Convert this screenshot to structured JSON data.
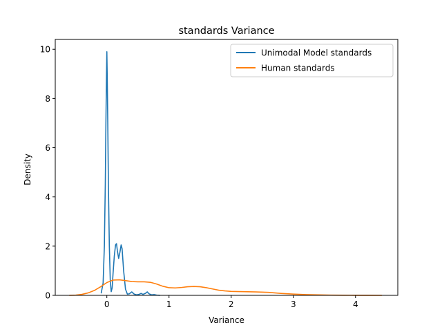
{
  "chart_data": {
    "type": "line",
    "title": "standards Variance",
    "xlabel": "Variance",
    "ylabel": "Density",
    "xlim": [
      -0.83,
      4.68
    ],
    "ylim": [
      0,
      10.4
    ],
    "x_ticks": [
      0,
      1,
      2,
      3,
      4
    ],
    "x_tick_labels": [
      "0",
      "1",
      "2",
      "3",
      "4"
    ],
    "y_ticks": [
      0,
      2,
      4,
      6,
      8,
      10
    ],
    "y_tick_labels": [
      "0",
      "2",
      "4",
      "6",
      "8",
      "10"
    ],
    "grid": false,
    "legend_position": "top-right",
    "series": [
      {
        "name": "Unimodal Model standards",
        "color": "#1f77b4",
        "points": [
          [
            -0.09,
            0.1
          ],
          [
            -0.06,
            0.5
          ],
          [
            -0.04,
            2.0
          ],
          [
            -0.025,
            4.5
          ],
          [
            -0.015,
            7.0
          ],
          [
            -0.006,
            8.9
          ],
          [
            0.0,
            9.9
          ],
          [
            0.006,
            8.9
          ],
          [
            0.015,
            7.0
          ],
          [
            0.025,
            4.5
          ],
          [
            0.04,
            2.0
          ],
          [
            0.055,
            0.6
          ],
          [
            0.07,
            0.15
          ],
          [
            0.085,
            0.3
          ],
          [
            0.1,
            0.9
          ],
          [
            0.12,
            1.6
          ],
          [
            0.14,
            2.05
          ],
          [
            0.155,
            2.1
          ],
          [
            0.17,
            1.8
          ],
          [
            0.19,
            1.5
          ],
          [
            0.21,
            1.75
          ],
          [
            0.23,
            2.05
          ],
          [
            0.245,
            1.9
          ],
          [
            0.27,
            1.0
          ],
          [
            0.3,
            0.25
          ],
          [
            0.33,
            0.05
          ],
          [
            0.36,
            0.06
          ],
          [
            0.4,
            0.14
          ],
          [
            0.44,
            0.05
          ],
          [
            0.48,
            0.02
          ],
          [
            0.52,
            0.04
          ],
          [
            0.55,
            0.08
          ],
          [
            0.58,
            0.04
          ],
          [
            0.62,
            0.08
          ],
          [
            0.65,
            0.14
          ],
          [
            0.68,
            0.06
          ],
          [
            0.72,
            0.02
          ],
          [
            0.76,
            0.03
          ],
          [
            0.8,
            0.01
          ],
          [
            0.85,
            0.0
          ]
        ]
      },
      {
        "name": "Human standards",
        "color": "#ff7f0e",
        "points": [
          [
            -0.6,
            0.0
          ],
          [
            -0.5,
            0.01
          ],
          [
            -0.4,
            0.04
          ],
          [
            -0.3,
            0.1
          ],
          [
            -0.2,
            0.2
          ],
          [
            -0.1,
            0.35
          ],
          [
            0.0,
            0.52
          ],
          [
            0.1,
            0.62
          ],
          [
            0.2,
            0.63
          ],
          [
            0.3,
            0.6
          ],
          [
            0.4,
            0.56
          ],
          [
            0.5,
            0.55
          ],
          [
            0.6,
            0.55
          ],
          [
            0.7,
            0.53
          ],
          [
            0.8,
            0.46
          ],
          [
            0.9,
            0.37
          ],
          [
            1.0,
            0.31
          ],
          [
            1.1,
            0.3
          ],
          [
            1.2,
            0.32
          ],
          [
            1.3,
            0.35
          ],
          [
            1.4,
            0.36
          ],
          [
            1.5,
            0.35
          ],
          [
            1.6,
            0.31
          ],
          [
            1.7,
            0.26
          ],
          [
            1.8,
            0.21
          ],
          [
            1.9,
            0.18
          ],
          [
            2.0,
            0.16
          ],
          [
            2.2,
            0.15
          ],
          [
            2.4,
            0.14
          ],
          [
            2.6,
            0.12
          ],
          [
            2.8,
            0.08
          ],
          [
            3.0,
            0.05
          ],
          [
            3.2,
            0.03
          ],
          [
            3.4,
            0.02
          ],
          [
            3.6,
            0.01
          ],
          [
            3.8,
            0.005
          ],
          [
            4.0,
            0.003
          ],
          [
            4.2,
            0.001
          ],
          [
            4.42,
            0.0
          ]
        ]
      }
    ]
  }
}
